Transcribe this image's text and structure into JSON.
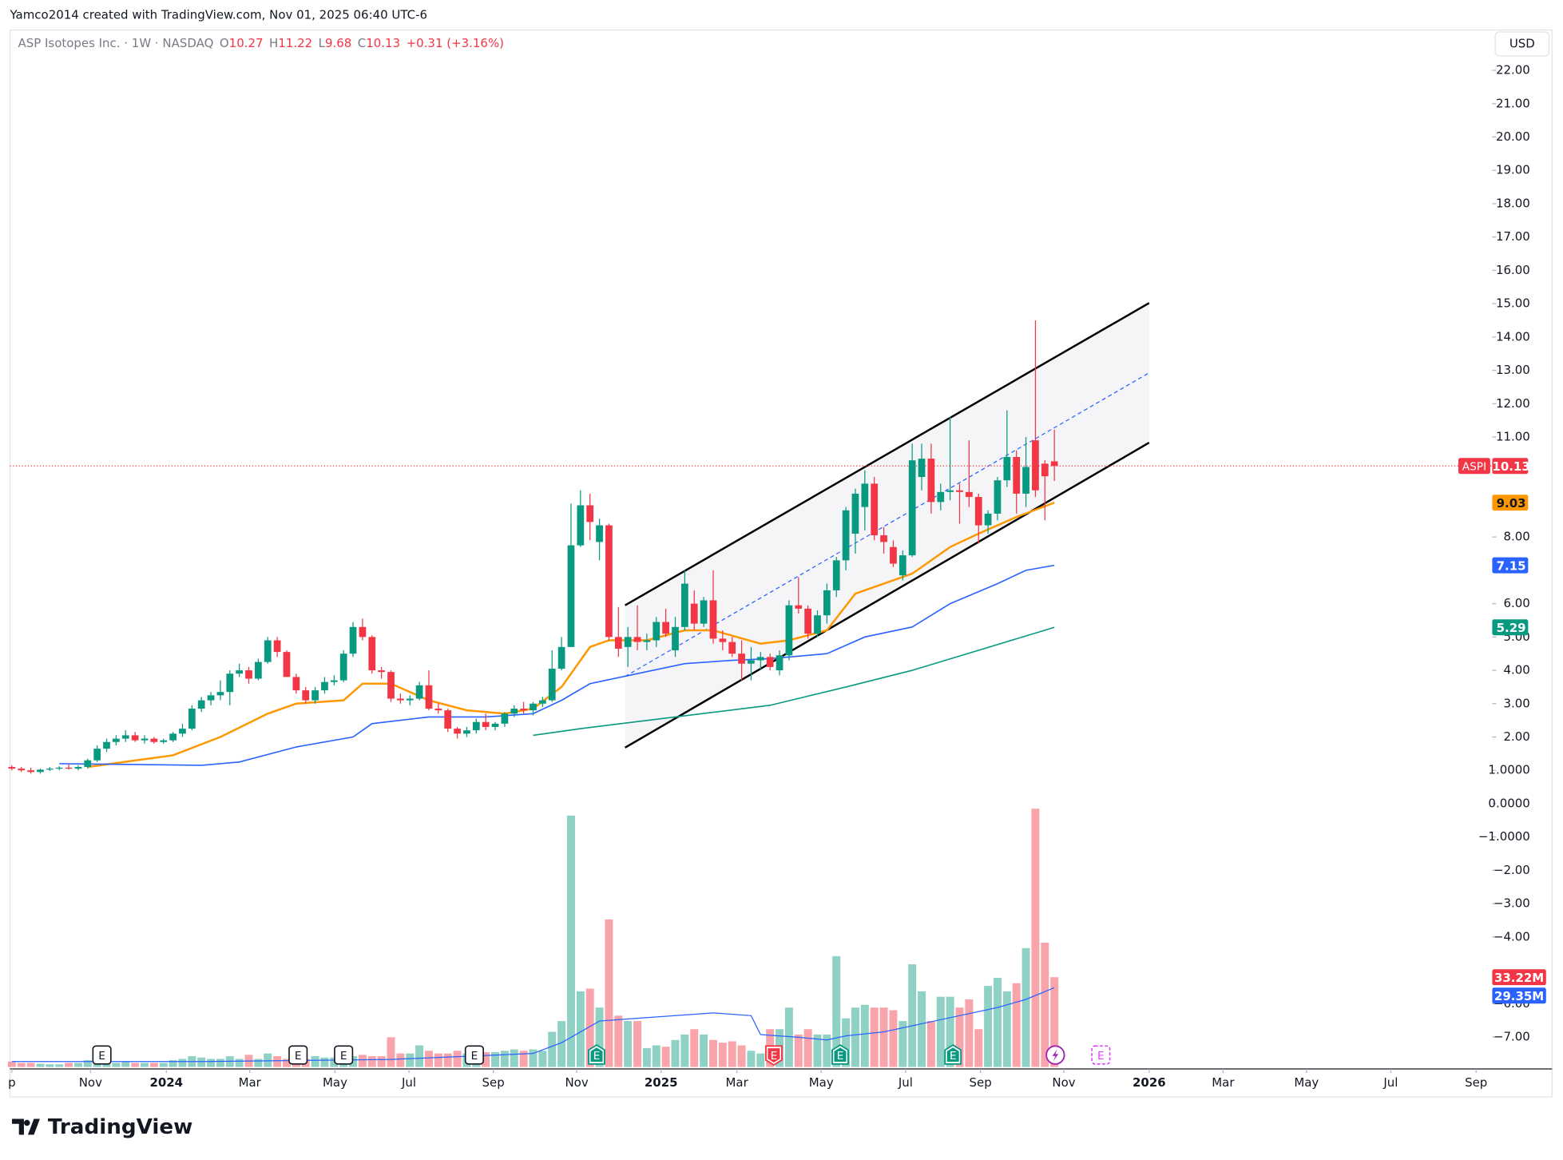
{
  "header": {
    "credit": "Yamco2014 created with TradingView.com, Nov 01, 2025 06:40 UTC-6",
    "symbol": "ASP Isotopes Inc. · 1W · NASDAQ",
    "prefixes": [
      "O",
      "H",
      "L",
      "C"
    ],
    "change": "+0.31 (+3.16%)",
    "currency": "USD",
    "ticker": "ASPI"
  },
  "footer": {
    "logo": "TradingView"
  },
  "chart_data": {
    "type": "candlestick",
    "xlim": [
      -0.2,
      156.2
    ],
    "ylim": [
      -7.96,
      23.21
    ],
    "xticks": [
      {
        "value": 0,
        "label": "p"
      },
      {
        "value": 8.3,
        "label": "Nov"
      },
      {
        "value": 16.3,
        "label": "2024"
      },
      {
        "value": 25.1,
        "label": "Mar"
      },
      {
        "value": 34.1,
        "label": "May"
      },
      {
        "value": 41.9,
        "label": "Jul"
      },
      {
        "value": 50.8,
        "label": "Sep"
      },
      {
        "value": 59.6,
        "label": "Nov"
      },
      {
        "value": 68.5,
        "label": "2025"
      },
      {
        "value": 76.5,
        "label": "Mar"
      },
      {
        "value": 85.4,
        "label": "May"
      },
      {
        "value": 94.3,
        "label": "Jul"
      },
      {
        "value": 102.2,
        "label": "Sep"
      },
      {
        "value": 111.0,
        "label": "Nov"
      },
      {
        "value": 120.0,
        "label": "2026"
      },
      {
        "value": 127.8,
        "label": "Mar"
      },
      {
        "value": 136.6,
        "label": "May"
      },
      {
        "value": 145.5,
        "label": "Jul"
      },
      {
        "value": 154.5,
        "label": "Sep"
      }
    ],
    "yticks": [
      {
        "value": 22,
        "label": "22.00"
      },
      {
        "value": 21,
        "label": "21.00"
      },
      {
        "value": 20,
        "label": "20.00"
      },
      {
        "value": 19,
        "label": "19.00"
      },
      {
        "value": 18,
        "label": "18.00"
      },
      {
        "value": 17,
        "label": "17.00"
      },
      {
        "value": 16,
        "label": "16.00"
      },
      {
        "value": 15,
        "label": "15.00"
      },
      {
        "value": 14,
        "label": "14.00"
      },
      {
        "value": 13,
        "label": "13.00"
      },
      {
        "value": 12,
        "label": "12.00"
      },
      {
        "value": 11,
        "label": "11.00"
      },
      {
        "value": 8,
        "label": "8.00"
      },
      {
        "value": 6,
        "label": "6.00"
      },
      {
        "value": 5,
        "label": "5.00"
      },
      {
        "value": 4,
        "label": "4.00"
      },
      {
        "value": 3,
        "label": "3.00"
      },
      {
        "value": 2,
        "label": "2.00"
      },
      {
        "value": 1,
        "label": "1.0000"
      },
      {
        "value": 0,
        "label": "0.0000"
      },
      {
        "value": -1,
        "label": "−1.0000"
      },
      {
        "value": -2,
        "label": "−2.00"
      },
      {
        "value": -3,
        "label": "−3.00"
      },
      {
        "value": -4,
        "label": "−4.00"
      },
      {
        "value": -6,
        "label": "−6.00"
      },
      {
        "value": -7,
        "label": "−7.00"
      }
    ],
    "up_color": "#089981",
    "down_color": "#f23645",
    "open": [
      1.1,
      1.05,
      1.0,
      0.95,
      1.02,
      1.05,
      1.08,
      1.05,
      1.1,
      1.3,
      1.65,
      1.85,
      1.95,
      2.05,
      1.9,
      1.95,
      1.85,
      1.9,
      2.1,
      2.25,
      2.85,
      3.1,
      3.25,
      3.35,
      3.9,
      4.0,
      3.75,
      4.25,
      4.9,
      4.55,
      3.8,
      3.4,
      3.1,
      3.4,
      3.65,
      3.7,
      4.5,
      5.3,
      5.0,
      4.0,
      3.95,
      3.15,
      3.1,
      3.15,
      3.55,
      2.85,
      2.8,
      2.25,
      2.1,
      2.2,
      2.45,
      2.3,
      2.4,
      2.7,
      2.85,
      2.8,
      3.0,
      3.1,
      4.05,
      4.7,
      7.75,
      8.95,
      7.85,
      8.35,
      5.0,
      4.7,
      5.0,
      4.85,
      4.9,
      5.45,
      4.6,
      5.3,
      6.0,
      5.4,
      6.1,
      4.95,
      4.85,
      4.5,
      4.2,
      4.3,
      4.4,
      4.0,
      4.45,
      5.95,
      5.85,
      5.1,
      5.65,
      6.4,
      7.3,
      8.1,
      8.9,
      9.6,
      8.05,
      7.7,
      6.85,
      7.45,
      9.8,
      10.35,
      9.05,
      9.35,
      9.4,
      9.35,
      9.2,
      8.35,
      8.7,
      9.7,
      10.4,
      9.3,
      10.9,
      10.2,
      10.27
    ],
    "high": [
      1.15,
      1.1,
      1.08,
      1.05,
      1.1,
      1.12,
      1.2,
      1.15,
      1.35,
      1.75,
      1.95,
      2.05,
      2.2,
      2.15,
      2.05,
      2.0,
      1.95,
      2.15,
      2.4,
      2.95,
      3.2,
      3.35,
      3.7,
      4.0,
      4.2,
      4.1,
      4.35,
      5.0,
      5.0,
      4.6,
      3.9,
      3.5,
      3.5,
      3.8,
      3.85,
      4.6,
      5.45,
      5.55,
      5.05,
      4.1,
      4.0,
      3.3,
      3.25,
      3.65,
      4.0,
      3.0,
      2.85,
      2.3,
      2.3,
      2.55,
      2.7,
      2.45,
      2.75,
      2.95,
      3.05,
      3.05,
      3.2,
      4.6,
      5.0,
      9.0,
      9.4,
      9.3,
      8.55,
      8.4,
      5.9,
      5.3,
      5.95,
      5.1,
      5.6,
      5.85,
      5.6,
      7.0,
      6.4,
      6.2,
      7.0,
      5.2,
      5.0,
      4.9,
      4.7,
      4.55,
      4.5,
      4.6,
      6.1,
      6.8,
      5.95,
      5.8,
      6.6,
      7.4,
      8.9,
      9.45,
      10.0,
      9.8,
      8.3,
      7.9,
      7.6,
      10.8,
      10.8,
      10.8,
      9.6,
      11.6,
      9.6,
      10.9,
      9.3,
      8.8,
      9.8,
      11.8,
      10.6,
      11.0,
      14.5,
      10.3,
      11.22
    ],
    "low": [
      1.0,
      0.95,
      0.9,
      0.9,
      0.98,
      1.0,
      1.02,
      1.0,
      1.05,
      1.25,
      1.55,
      1.75,
      1.85,
      1.85,
      1.8,
      1.8,
      1.8,
      1.85,
      2.0,
      2.2,
      2.75,
      2.95,
      3.1,
      2.95,
      3.8,
      3.6,
      3.7,
      4.2,
      4.4,
      3.8,
      3.3,
      3.0,
      3.0,
      3.3,
      3.55,
      3.65,
      4.4,
      4.9,
      3.9,
      3.75,
      3.05,
      3.0,
      2.95,
      3.1,
      2.8,
      2.7,
      2.15,
      1.95,
      2.0,
      2.1,
      2.2,
      2.2,
      2.3,
      2.6,
      2.7,
      2.65,
      2.9,
      3.05,
      4.0,
      4.7,
      7.7,
      7.9,
      7.3,
      4.9,
      4.4,
      4.1,
      4.6,
      4.6,
      4.7,
      5.0,
      4.4,
      5.2,
      5.2,
      5.3,
      4.8,
      4.6,
      4.4,
      3.7,
      3.7,
      4.0,
      4.0,
      3.85,
      4.3,
      5.7,
      4.95,
      5.0,
      5.4,
      6.2,
      7.0,
      7.5,
      8.2,
      7.9,
      7.5,
      7.1,
      6.7,
      7.4,
      9.4,
      8.7,
      8.8,
      9.1,
      8.4,
      8.9,
      7.8,
      8.1,
      8.5,
      9.5,
      8.7,
      8.9,
      9.2,
      8.5,
      9.68
    ],
    "close": [
      1.05,
      1.0,
      0.95,
      1.02,
      1.05,
      1.08,
      1.05,
      1.1,
      1.3,
      1.65,
      1.85,
      1.95,
      2.05,
      1.9,
      1.95,
      1.85,
      1.9,
      2.1,
      2.25,
      2.85,
      3.1,
      3.25,
      3.35,
      3.9,
      4.0,
      3.75,
      4.25,
      4.9,
      4.55,
      3.8,
      3.4,
      3.1,
      3.4,
      3.65,
      3.7,
      4.5,
      5.3,
      5.0,
      4.0,
      3.95,
      3.15,
      3.1,
      3.15,
      3.55,
      2.85,
      2.8,
      2.25,
      2.1,
      2.2,
      2.45,
      2.3,
      2.4,
      2.7,
      2.85,
      2.8,
      3.0,
      3.1,
      4.05,
      4.7,
      7.75,
      8.95,
      8.45,
      8.35,
      5.0,
      4.65,
      5.0,
      4.85,
      4.9,
      5.45,
      5.1,
      5.3,
      6.6,
      5.4,
      6.1,
      4.95,
      4.85,
      4.5,
      4.2,
      4.3,
      4.4,
      4.1,
      4.45,
      5.95,
      5.85,
      5.1,
      5.65,
      6.4,
      7.3,
      8.8,
      9.3,
      9.6,
      8.05,
      7.85,
      7.2,
      7.45,
      10.3,
      10.35,
      9.05,
      9.35,
      9.4,
      9.35,
      9.2,
      8.35,
      8.7,
      9.7,
      10.4,
      9.3,
      10.1,
      9.4,
      9.82,
      10.13
    ],
    "ma": [
      {
        "color": "#ff9800",
        "x": [
          8,
          17,
          22,
          27,
          30,
          35,
          37,
          40,
          44,
          48,
          52,
          55,
          58,
          61,
          63,
          67,
          71,
          74,
          79,
          82,
          86,
          89,
          92,
          95,
          99,
          102,
          106,
          110
        ],
        "values": [
          1.1,
          1.45,
          2.0,
          2.7,
          3.0,
          3.1,
          3.6,
          3.6,
          3.1,
          2.8,
          2.7,
          2.85,
          3.5,
          4.7,
          4.9,
          4.9,
          5.2,
          5.2,
          4.8,
          4.9,
          5.2,
          6.3,
          6.6,
          6.9,
          7.7,
          8.1,
          8.6,
          9.03
        ]
      },
      {
        "color": "#2962ff",
        "x": [
          5,
          20,
          24,
          30,
          36,
          38,
          44,
          50,
          55,
          58,
          61,
          66,
          71,
          76,
          80,
          86,
          90,
          95,
          99,
          104,
          107,
          110
        ],
        "values": [
          1.2,
          1.15,
          1.25,
          1.7,
          2.0,
          2.4,
          2.6,
          2.6,
          2.7,
          3.1,
          3.6,
          3.9,
          4.2,
          4.3,
          4.35,
          4.5,
          5.0,
          5.3,
          6.0,
          6.6,
          7.0,
          7.15
        ]
      },
      {
        "color": "#089981",
        "x": [
          55,
          60,
          70,
          80,
          88,
          95,
          102,
          110
        ],
        "values": [
          2.05,
          2.25,
          2.6,
          2.95,
          3.5,
          4.0,
          4.6,
          5.29
        ]
      }
    ],
    "channel": {
      "x": [
        64.7,
        120.0
      ],
      "upper": [
        5.95,
        15.02
      ],
      "lower": [
        1.68,
        10.83
      ]
    },
    "volume": {
      "ylim": [
        0,
        100
      ],
      "up_color": "rgba(8,153,129,0.45)",
      "down_color": "rgba(242,54,69,0.45)",
      "values": [
        2,
        1.5,
        1.5,
        1.2,
        1,
        1,
        1.5,
        1.5,
        2.5,
        2,
        2,
        1.5,
        2,
        1.5,
        1.5,
        1.5,
        1.5,
        2.5,
        3,
        4,
        3.5,
        3,
        3,
        4,
        3,
        4.5,
        3,
        5,
        4,
        3,
        3.5,
        3,
        4,
        3.5,
        3.5,
        3,
        4,
        4.5,
        4,
        4,
        11,
        5,
        5,
        8,
        6,
        5,
        5,
        6,
        5,
        5,
        5.5,
        5.5,
        6,
        6.5,
        6,
        6.5,
        6,
        13,
        17,
        93,
        28,
        29,
        22,
        54.6,
        19,
        17,
        17,
        7,
        8,
        7.5,
        10,
        12,
        14,
        12,
        10,
        9,
        9.5,
        8,
        6,
        5,
        14,
        14,
        22,
        12,
        14,
        12,
        12,
        41,
        18,
        22,
        23,
        22,
        22,
        21,
        17,
        38,
        28,
        17,
        26,
        26,
        22,
        25,
        14,
        30,
        33,
        28,
        31,
        44,
        95.6,
        46,
        33.22
      ],
      "last_label": "33.22M",
      "ma_color": "#2962ff",
      "ma_x": [
        0,
        20,
        40,
        55,
        58,
        62,
        66,
        70,
        74,
        78,
        79,
        83,
        86,
        88,
        92,
        96,
        100,
        104,
        107,
        110
      ],
      "ma_values": [
        2,
        2,
        2.8,
        5,
        9,
        17,
        18,
        19,
        20,
        19,
        12,
        11,
        10,
        11.5,
        13,
        16,
        19,
        22,
        25,
        29.35
      ],
      "ma_last_label": "29.35M"
    },
    "events": [
      {
        "x": 9.5,
        "kind": "past",
        "label": "E"
      },
      {
        "x": 30.2,
        "kind": "past",
        "label": "E"
      },
      {
        "x": 35.0,
        "kind": "past",
        "label": "E"
      },
      {
        "x": 48.8,
        "kind": "past",
        "label": "E"
      },
      {
        "x": 61.7,
        "kind": "beat",
        "label": "E"
      },
      {
        "x": 80.4,
        "kind": "miss",
        "label": "E"
      },
      {
        "x": 87.4,
        "kind": "beat",
        "label": "E"
      },
      {
        "x": 99.3,
        "kind": "beat",
        "label": "E"
      },
      {
        "x": 110.1,
        "kind": "news"
      },
      {
        "x": 114.9,
        "kind": "upcoming",
        "label": "E"
      }
    ]
  }
}
